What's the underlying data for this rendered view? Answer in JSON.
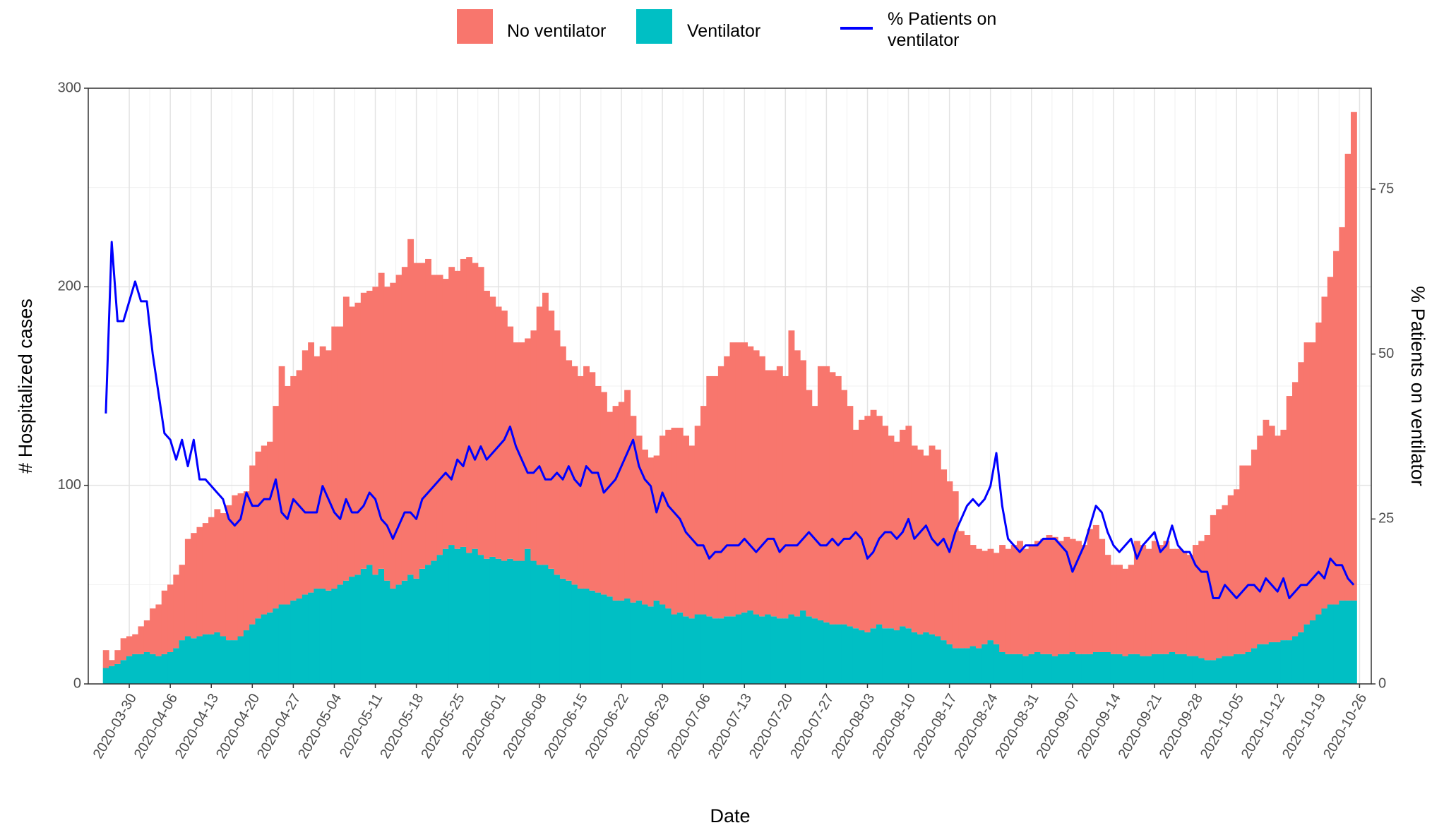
{
  "chart_data": {
    "type": "bar",
    "stacked": true,
    "legend": "top",
    "grid": true,
    "xlabel": "Date",
    "ylabel": "# Hospitalized cases",
    "y2label": "% Patients on ventilator",
    "xlim": [
      "2020-03-23",
      "2020-10-28"
    ],
    "xticks": [
      "2020-03-30",
      "2020-04-06",
      "2020-04-13",
      "2020-04-20",
      "2020-04-27",
      "2020-05-04",
      "2020-05-11",
      "2020-05-18",
      "2020-05-25",
      "2020-06-01",
      "2020-06-08",
      "2020-06-15",
      "2020-06-22",
      "2020-06-29",
      "2020-07-06",
      "2020-07-13",
      "2020-07-20",
      "2020-07-27",
      "2020-08-03",
      "2020-08-10",
      "2020-08-17",
      "2020-08-24",
      "2020-08-31",
      "2020-09-07",
      "2020-09-14",
      "2020-09-21",
      "2020-09-28",
      "2020-10-05",
      "2020-10-12",
      "2020-10-19",
      "2020-10-26"
    ],
    "ylim": [
      0,
      300
    ],
    "yticks": [
      0,
      100,
      200,
      300
    ],
    "y2lim": [
      0,
      90.3
    ],
    "y2ticks": [
      0,
      25,
      50,
      75
    ],
    "x": [
      "2020-03-26",
      "2020-03-27",
      "2020-03-28",
      "2020-03-29",
      "2020-03-30",
      "2020-03-31",
      "2020-04-01",
      "2020-04-02",
      "2020-04-03",
      "2020-04-04",
      "2020-04-05",
      "2020-04-06",
      "2020-04-07",
      "2020-04-08",
      "2020-04-09",
      "2020-04-10",
      "2020-04-11",
      "2020-04-12",
      "2020-04-13",
      "2020-04-14",
      "2020-04-15",
      "2020-04-16",
      "2020-04-17",
      "2020-04-18",
      "2020-04-19",
      "2020-04-20",
      "2020-04-21",
      "2020-04-22",
      "2020-04-23",
      "2020-04-24",
      "2020-04-25",
      "2020-04-26",
      "2020-04-27",
      "2020-04-28",
      "2020-04-29",
      "2020-04-30",
      "2020-05-01",
      "2020-05-02",
      "2020-05-03",
      "2020-05-04",
      "2020-05-05",
      "2020-05-06",
      "2020-05-07",
      "2020-05-08",
      "2020-05-09",
      "2020-05-10",
      "2020-05-11",
      "2020-05-12",
      "2020-05-13",
      "2020-05-14",
      "2020-05-15",
      "2020-05-16",
      "2020-05-17",
      "2020-05-18",
      "2020-05-19",
      "2020-05-20",
      "2020-05-21",
      "2020-05-22",
      "2020-05-23",
      "2020-05-24",
      "2020-05-25",
      "2020-05-26",
      "2020-05-27",
      "2020-05-28",
      "2020-05-29",
      "2020-05-30",
      "2020-05-31",
      "2020-06-01",
      "2020-06-02",
      "2020-06-03",
      "2020-06-04",
      "2020-06-05",
      "2020-06-06",
      "2020-06-07",
      "2020-06-08",
      "2020-06-09",
      "2020-06-10",
      "2020-06-11",
      "2020-06-12",
      "2020-06-13",
      "2020-06-14",
      "2020-06-15",
      "2020-06-16",
      "2020-06-17",
      "2020-06-18",
      "2020-06-19",
      "2020-06-20",
      "2020-06-21",
      "2020-06-22",
      "2020-06-23",
      "2020-06-24",
      "2020-06-25",
      "2020-06-26",
      "2020-06-27",
      "2020-06-28",
      "2020-06-29",
      "2020-06-30",
      "2020-07-01",
      "2020-07-02",
      "2020-07-03",
      "2020-07-04",
      "2020-07-05",
      "2020-07-06",
      "2020-07-07",
      "2020-07-08",
      "2020-07-09",
      "2020-07-10",
      "2020-07-11",
      "2020-07-12",
      "2020-07-13",
      "2020-07-14",
      "2020-07-15",
      "2020-07-16",
      "2020-07-17",
      "2020-07-18",
      "2020-07-19",
      "2020-07-20",
      "2020-07-21",
      "2020-07-22",
      "2020-07-23",
      "2020-07-24",
      "2020-07-25",
      "2020-07-26",
      "2020-07-27",
      "2020-07-28",
      "2020-07-29",
      "2020-07-30",
      "2020-07-31",
      "2020-08-01",
      "2020-08-02",
      "2020-08-03",
      "2020-08-04",
      "2020-08-05",
      "2020-08-06",
      "2020-08-07",
      "2020-08-08",
      "2020-08-09",
      "2020-08-10",
      "2020-08-11",
      "2020-08-12",
      "2020-08-13",
      "2020-08-14",
      "2020-08-15",
      "2020-08-16",
      "2020-08-17",
      "2020-08-18",
      "2020-08-19",
      "2020-08-20",
      "2020-08-21",
      "2020-08-22",
      "2020-08-23",
      "2020-08-24",
      "2020-08-25",
      "2020-08-26",
      "2020-08-27",
      "2020-08-28",
      "2020-08-29",
      "2020-08-30",
      "2020-08-31",
      "2020-09-01",
      "2020-09-02",
      "2020-09-03",
      "2020-09-04",
      "2020-09-05",
      "2020-09-06",
      "2020-09-07",
      "2020-09-08",
      "2020-09-09",
      "2020-09-10",
      "2020-09-11",
      "2020-09-12",
      "2020-09-13",
      "2020-09-14",
      "2020-09-15",
      "2020-09-16",
      "2020-09-17",
      "2020-09-18",
      "2020-09-19",
      "2020-09-20",
      "2020-09-21",
      "2020-09-22",
      "2020-09-23",
      "2020-09-24",
      "2020-09-25",
      "2020-09-26",
      "2020-09-27",
      "2020-09-28",
      "2020-09-29",
      "2020-09-30",
      "2020-10-01",
      "2020-10-02",
      "2020-10-03",
      "2020-10-04",
      "2020-10-05",
      "2020-10-06",
      "2020-10-07",
      "2020-10-08",
      "2020-10-09",
      "2020-10-10",
      "2020-10-11",
      "2020-10-12",
      "2020-10-13",
      "2020-10-14",
      "2020-10-15",
      "2020-10-16",
      "2020-10-17",
      "2020-10-18",
      "2020-10-19",
      "2020-10-20",
      "2020-10-21",
      "2020-10-22",
      "2020-10-23",
      "2020-10-24",
      "2020-10-25"
    ],
    "series": [
      {
        "name": "No ventilator",
        "color": "#F8766D",
        "values": [
          9,
          3,
          7,
          11,
          10,
          10,
          14,
          16,
          23,
          26,
          32,
          34,
          37,
          38,
          49,
          53,
          55,
          56,
          59,
          62,
          62,
          68,
          73,
          72,
          70,
          80,
          84,
          85,
          86,
          102,
          120,
          110,
          113,
          115,
          123,
          126,
          117,
          122,
          121,
          132,
          130,
          143,
          136,
          137,
          139,
          138,
          145,
          149,
          148,
          154,
          156,
          158,
          169,
          159,
          154,
          154,
          144,
          141,
          136,
          140,
          140,
          145,
          149,
          144,
          145,
          135,
          131,
          127,
          126,
          117,
          110,
          110,
          106,
          116,
          130,
          137,
          130,
          123,
          117,
          111,
          110,
          107,
          112,
          110,
          104,
          102,
          93,
          98,
          100,
          105,
          94,
          83,
          78,
          75,
          73,
          85,
          90,
          94,
          93,
          91,
          87,
          95,
          105,
          121,
          122,
          127,
          131,
          138,
          137,
          136,
          133,
          133,
          131,
          123,
          124,
          127,
          122,
          143,
          134,
          126,
          114,
          107,
          128,
          129,
          127,
          125,
          118,
          111,
          100,
          106,
          109,
          110,
          105,
          102,
          97,
          95,
          99,
          102,
          94,
          93,
          89,
          95,
          94,
          86,
          82,
          79,
          59,
          57,
          51,
          50,
          47,
          46,
          46,
          54,
          53,
          55,
          57,
          54,
          55,
          56,
          58,
          60,
          60,
          57,
          59,
          57,
          57,
          55,
          63,
          64,
          57,
          49,
          45,
          45,
          44,
          45,
          57,
          56,
          54,
          57,
          55,
          57,
          52,
          53,
          52,
          51,
          56,
          59,
          63,
          73,
          75,
          76,
          81,
          83,
          95,
          94,
          100,
          105,
          113,
          109,
          104,
          106,
          123,
          128,
          136,
          142,
          140,
          147,
          157,
          165,
          178,
          188,
          225,
          246
        ]
      },
      {
        "name": "Ventilator",
        "color": "#00BFC4",
        "values": [
          8,
          9,
          10,
          12,
          14,
          15,
          15,
          16,
          15,
          14,
          15,
          16,
          18,
          22,
          24,
          23,
          24,
          25,
          25,
          26,
          24,
          22,
          22,
          24,
          27,
          30,
          33,
          35,
          36,
          38,
          40,
          40,
          42,
          43,
          45,
          46,
          48,
          48,
          47,
          48,
          50,
          52,
          54,
          55,
          58,
          60,
          55,
          58,
          52,
          48,
          50,
          52,
          55,
          53,
          58,
          60,
          62,
          65,
          68,
          70,
          68,
          69,
          66,
          68,
          65,
          63,
          64,
          63,
          62,
          63,
          62,
          62,
          68,
          62,
          60,
          60,
          58,
          55,
          53,
          52,
          50,
          48,
          48,
          47,
          46,
          45,
          44,
          42,
          42,
          43,
          41,
          42,
          40,
          39,
          42,
          40,
          38,
          35,
          36,
          34,
          33,
          35,
          35,
          34,
          33,
          33,
          34,
          34,
          35,
          36,
          37,
          35,
          34,
          35,
          34,
          33,
          33,
          35,
          34,
          37,
          34,
          33,
          32,
          31,
          30,
          30,
          30,
          29,
          28,
          27,
          26,
          28,
          30,
          28,
          28,
          27,
          29,
          28,
          26,
          25,
          26,
          25,
          24,
          22,
          20,
          18,
          18,
          18,
          19,
          18,
          20,
          22,
          20,
          16,
          15,
          15,
          15,
          14,
          15,
          16,
          15,
          15,
          14,
          15,
          15,
          16,
          15,
          15,
          15,
          16,
          16,
          16,
          15,
          15,
          14,
          15,
          15,
          14,
          14,
          15,
          15,
          15,
          16,
          15,
          15,
          14,
          14,
          13,
          12,
          12,
          13,
          14,
          14,
          15,
          15,
          16,
          18,
          20,
          20,
          21,
          21,
          22,
          22,
          24,
          26,
          30,
          32,
          35,
          38,
          40,
          40,
          42,
          42,
          42
        ]
      },
      {
        "name": "% Patients on ventilator",
        "color": "#0000FF",
        "axis": "y2",
        "type": "line",
        "values": [
          41,
          67,
          55,
          55,
          58,
          61,
          58,
          58,
          50,
          44,
          38,
          37,
          34,
          37,
          33,
          37,
          31,
          31,
          30,
          29,
          28,
          25,
          24,
          25,
          29,
          27,
          27,
          28,
          28,
          31,
          26,
          25,
          28,
          27,
          26,
          26,
          26,
          30,
          28,
          26,
          25,
          28,
          26,
          26,
          27,
          29,
          28,
          25,
          24,
          22,
          24,
          26,
          26,
          25,
          28,
          29,
          30,
          31,
          32,
          31,
          34,
          33,
          36,
          34,
          36,
          34,
          35,
          36,
          37,
          39,
          36,
          34,
          32,
          32,
          33,
          31,
          31,
          32,
          31,
          33,
          31,
          30,
          33,
          32,
          32,
          29,
          30,
          31,
          33,
          35,
          37,
          33,
          31,
          30,
          26,
          29,
          27,
          26,
          25,
          23,
          22,
          21,
          21,
          19,
          20,
          20,
          21,
          21,
          21,
          22,
          21,
          20,
          21,
          22,
          22,
          20,
          21,
          21,
          21,
          22,
          23,
          22,
          21,
          21,
          22,
          21,
          22,
          22,
          23,
          22,
          19,
          20,
          22,
          23,
          23,
          22,
          23,
          25,
          22,
          23,
          24,
          22,
          21,
          22,
          20,
          23,
          25,
          27,
          28,
          27,
          28,
          30,
          35,
          27,
          22,
          21,
          20,
          21,
          21,
          21,
          22,
          22,
          22,
          21,
          20,
          17,
          19,
          21,
          24,
          27,
          26,
          23,
          21,
          20,
          21,
          22,
          19,
          21,
          22,
          23,
          20,
          21,
          24,
          21,
          20,
          20,
          18,
          17,
          17,
          13,
          13,
          15,
          14,
          13,
          14,
          15,
          15,
          14,
          16,
          15,
          14,
          16,
          13,
          14,
          15,
          15,
          16,
          17,
          16,
          19,
          18,
          18,
          16,
          15
        ]
      }
    ]
  }
}
